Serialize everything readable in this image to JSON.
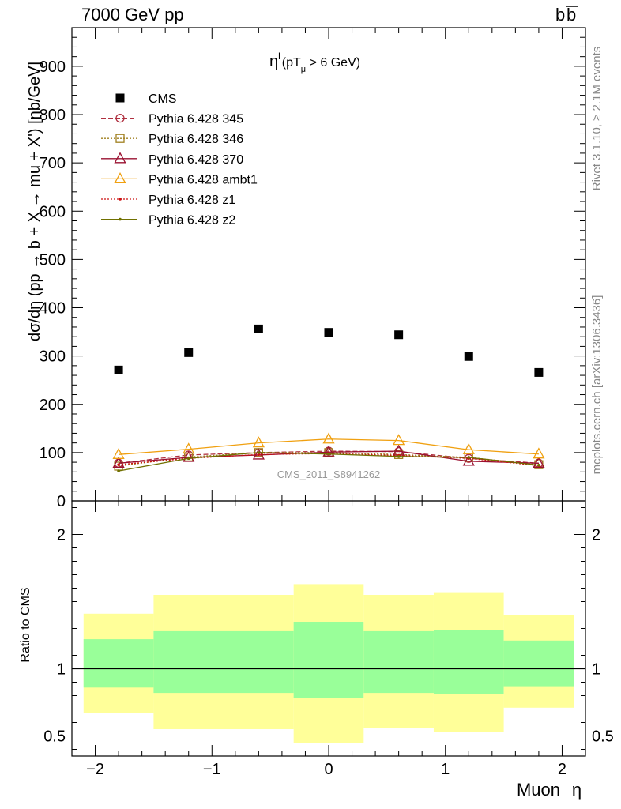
{
  "header": {
    "left_title": "7000 GeV pp",
    "right_title_base": "b",
    "right_title_bar": "b"
  },
  "side_labels": {
    "rivet": "Rivet 3.1.10, ≥ 2.1M events",
    "mcplots": "mcplots.cern.ch [arXiv:1306.3436]"
  },
  "colors": {
    "cms": "#000000",
    "p345": "#b03040",
    "p346": "#a08020",
    "p370": "#9a1030",
    "ambt1": "#f0a010",
    "z1": "#cc1010",
    "z2": "#707000",
    "band_inner": "#99ff99",
    "band_outer": "#ffff99"
  },
  "chart_data": [
    {
      "type": "scatter",
      "panel": "main",
      "title": "ηˡ (pTμ > 6 GeV)",
      "title_parts": {
        "eta": "η",
        "sup": "l",
        "open": "(pT",
        "sub": "μ",
        "rest": " >  6 GeV)"
      },
      "watermark": "CMS_2011_S8941262",
      "ylabel": "dσ/dη (pp → b + X → mu + X') [nb/GeV]",
      "xlim": [
        -2.2,
        2.2
      ],
      "ylim": [
        0,
        980
      ],
      "yticks": [
        0,
        100,
        200,
        300,
        400,
        500,
        600,
        700,
        800,
        900
      ],
      "ytick_labels": [
        "0",
        "100",
        "200",
        "300",
        "400",
        "500",
        "600",
        "700",
        "800",
        "900"
      ],
      "x": [
        -1.8,
        -1.2,
        -0.6,
        0.0,
        0.6,
        1.2,
        1.8
      ],
      "series": [
        {
          "name": "CMS",
          "key": "cms",
          "marker": "square-filled",
          "values": [
            271,
            307,
            356,
            349,
            344,
            299,
            266
          ]
        },
        {
          "name": "Pythia 6.428 345",
          "key": "p345",
          "marker": "circle-open",
          "dash": "6,3",
          "values": [
            78,
            95,
            100,
            103,
            102,
            88,
            78
          ]
        },
        {
          "name": "Pythia 6.428 346",
          "key": "p346",
          "marker": "square-open",
          "dash": "2,2",
          "values": [
            72,
            91,
            100,
            100,
            96,
            90,
            75
          ]
        },
        {
          "name": "Pythia 6.428 370",
          "key": "p370",
          "marker": "triangle-open",
          "dash": "",
          "values": [
            78,
            90,
            95,
            101,
            103,
            82,
            78
          ]
        },
        {
          "name": "Pythia 6.428 ambt1",
          "key": "ambt1",
          "marker": "triangle-open",
          "dash": "",
          "values": [
            96,
            107,
            120,
            128,
            125,
            106,
            97
          ]
        },
        {
          "name": "Pythia 6.428 z1",
          "key": "z1",
          "marker": "dot",
          "dash": "2,2",
          "values": [
            75,
            88,
            96,
            98,
            94,
            88,
            73
          ]
        },
        {
          "name": "Pythia 6.428 z2",
          "key": "z2",
          "marker": "dot",
          "dash": "",
          "values": [
            62,
            88,
            100,
            97,
            92,
            90,
            74
          ]
        }
      ],
      "legend": "top-left"
    },
    {
      "type": "area",
      "panel": "ratio",
      "ylabel": "Ratio to CMS",
      "xlabel_text": "Muon",
      "xlabel_symbol": "η",
      "xlim": [
        -2.2,
        2.2
      ],
      "ylim": [
        0.35,
        2.25
      ],
      "yticks": [
        0.5,
        1,
        2
      ],
      "ytick_labels": [
        "0.5",
        "1",
        "2"
      ],
      "xticks": [
        -2,
        -1,
        0,
        1,
        2
      ],
      "xtick_labels": [
        "−2",
        "−1",
        "0",
        "1",
        "2"
      ],
      "bins": [
        {
          "lo": -2.1,
          "hi": -1.5,
          "inner": [
            0.86,
            1.22
          ],
          "outer": [
            0.67,
            1.41
          ]
        },
        {
          "lo": -1.5,
          "hi": -0.3,
          "inner": [
            0.82,
            1.28
          ],
          "outer": [
            0.55,
            1.55
          ]
        },
        {
          "lo": -0.3,
          "hi": 0.3,
          "inner": [
            0.78,
            1.35
          ],
          "outer": [
            0.45,
            1.63
          ]
        },
        {
          "lo": 0.3,
          "hi": 0.9,
          "inner": [
            0.82,
            1.28
          ],
          "outer": [
            0.56,
            1.55
          ]
        },
        {
          "lo": 0.9,
          "hi": 1.5,
          "inner": [
            0.81,
            1.29
          ],
          "outer": [
            0.53,
            1.57
          ]
        },
        {
          "lo": 1.5,
          "hi": 2.1,
          "inner": [
            0.87,
            1.21
          ],
          "outer": [
            0.71,
            1.4
          ]
        }
      ],
      "reference_line": 1
    }
  ]
}
